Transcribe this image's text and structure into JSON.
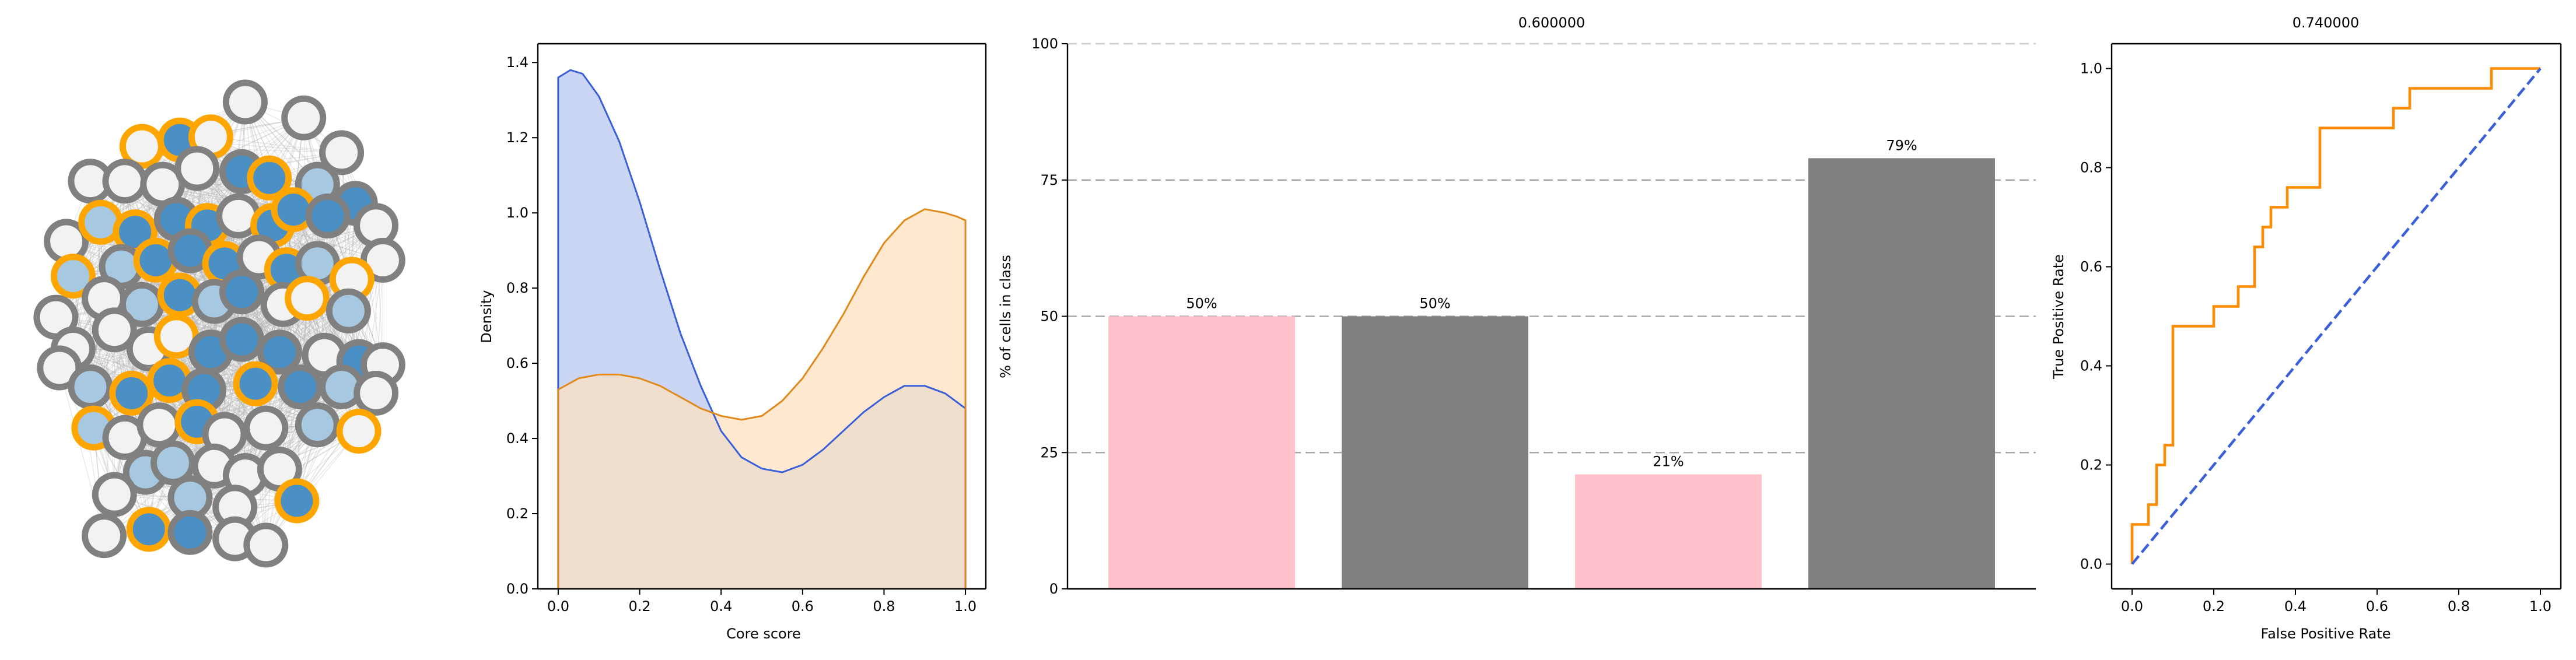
{
  "chart_data": [
    {
      "type": "network",
      "colors": {
        "node_fill_dark": "#4a90c4",
        "node_fill_light": "#a6c8e0",
        "node_fill_empty": "#f2f2f2",
        "ring_core": "#ffa500",
        "ring_periphery": "#808080",
        "edge": "#b3b3b3"
      },
      "nodes": [
        {
          "x": 0.56,
          "y": 0.95,
          "fill": "empty",
          "ring": "periphery"
        },
        {
          "x": 0.73,
          "y": 0.9,
          "fill": "empty",
          "ring": "periphery"
        },
        {
          "x": 0.26,
          "y": 0.81,
          "fill": "empty",
          "ring": "core"
        },
        {
          "x": 0.37,
          "y": 0.83,
          "fill": "dark",
          "ring": "core"
        },
        {
          "x": 0.46,
          "y": 0.84,
          "fill": "empty",
          "ring": "core"
        },
        {
          "x": 0.84,
          "y": 0.79,
          "fill": "empty",
          "ring": "periphery"
        },
        {
          "x": 0.11,
          "y": 0.7,
          "fill": "empty",
          "ring": "periphery"
        },
        {
          "x": 0.21,
          "y": 0.7,
          "fill": "empty",
          "ring": "periphery"
        },
        {
          "x": 0.32,
          "y": 0.69,
          "fill": "empty",
          "ring": "periphery"
        },
        {
          "x": 0.42,
          "y": 0.74,
          "fill": "empty",
          "ring": "periphery"
        },
        {
          "x": 0.55,
          "y": 0.73,
          "fill": "dark",
          "ring": "periphery"
        },
        {
          "x": 0.63,
          "y": 0.71,
          "fill": "dark",
          "ring": "core"
        },
        {
          "x": 0.77,
          "y": 0.69,
          "fill": "light",
          "ring": "periphery"
        },
        {
          "x": 0.88,
          "y": 0.63,
          "fill": "dark",
          "ring": "periphery"
        },
        {
          "x": 0.94,
          "y": 0.56,
          "fill": "empty",
          "ring": "periphery"
        },
        {
          "x": 0.04,
          "y": 0.51,
          "fill": "empty",
          "ring": "periphery"
        },
        {
          "x": 0.14,
          "y": 0.57,
          "fill": "light",
          "ring": "core"
        },
        {
          "x": 0.24,
          "y": 0.54,
          "fill": "dark",
          "ring": "core"
        },
        {
          "x": 0.36,
          "y": 0.58,
          "fill": "dark",
          "ring": "periphery"
        },
        {
          "x": 0.45,
          "y": 0.56,
          "fill": "dark",
          "ring": "core"
        },
        {
          "x": 0.54,
          "y": 0.59,
          "fill": "empty",
          "ring": "periphery"
        },
        {
          "x": 0.64,
          "y": 0.56,
          "fill": "dark",
          "ring": "core"
        },
        {
          "x": 0.7,
          "y": 0.61,
          "fill": "dark",
          "ring": "core"
        },
        {
          "x": 0.8,
          "y": 0.59,
          "fill": "dark",
          "ring": "periphery"
        },
        {
          "x": 0.96,
          "y": 0.45,
          "fill": "empty",
          "ring": "periphery"
        },
        {
          "x": 0.06,
          "y": 0.4,
          "fill": "light",
          "ring": "core"
        },
        {
          "x": 0.2,
          "y": 0.43,
          "fill": "light",
          "ring": "periphery"
        },
        {
          "x": 0.3,
          "y": 0.45,
          "fill": "dark",
          "ring": "core"
        },
        {
          "x": 0.4,
          "y": 0.48,
          "fill": "dark",
          "ring": "periphery"
        },
        {
          "x": 0.5,
          "y": 0.44,
          "fill": "dark",
          "ring": "core"
        },
        {
          "x": 0.6,
          "y": 0.46,
          "fill": "empty",
          "ring": "periphery"
        },
        {
          "x": 0.68,
          "y": 0.42,
          "fill": "dark",
          "ring": "core"
        },
        {
          "x": 0.77,
          "y": 0.44,
          "fill": "light",
          "ring": "periphery"
        },
        {
          "x": 0.87,
          "y": 0.39,
          "fill": "empty",
          "ring": "core"
        },
        {
          "x": 0.01,
          "y": 0.27,
          "fill": "empty",
          "ring": "periphery"
        },
        {
          "x": 0.15,
          "y": 0.33,
          "fill": "empty",
          "ring": "periphery"
        },
        {
          "x": 0.26,
          "y": 0.31,
          "fill": "light",
          "ring": "periphery"
        },
        {
          "x": 0.37,
          "y": 0.34,
          "fill": "dark",
          "ring": "core"
        },
        {
          "x": 0.47,
          "y": 0.32,
          "fill": "light",
          "ring": "periphery"
        },
        {
          "x": 0.55,
          "y": 0.35,
          "fill": "dark",
          "ring": "periphery"
        },
        {
          "x": 0.67,
          "y": 0.31,
          "fill": "empty",
          "ring": "periphery"
        },
        {
          "x": 0.74,
          "y": 0.33,
          "fill": "empty",
          "ring": "core"
        },
        {
          "x": 0.86,
          "y": 0.29,
          "fill": "light",
          "ring": "periphery"
        },
        {
          "x": 0.06,
          "y": 0.17,
          "fill": "empty",
          "ring": "periphery"
        },
        {
          "x": 0.18,
          "y": 0.23,
          "fill": "empty",
          "ring": "periphery"
        },
        {
          "x": 0.28,
          "y": 0.17,
          "fill": "empty",
          "ring": "periphery"
        },
        {
          "x": 0.36,
          "y": 0.21,
          "fill": "empty",
          "ring": "core"
        },
        {
          "x": 0.46,
          "y": 0.16,
          "fill": "dark",
          "ring": "periphery"
        },
        {
          "x": 0.55,
          "y": 0.2,
          "fill": "dark",
          "ring": "periphery"
        },
        {
          "x": 0.66,
          "y": 0.16,
          "fill": "dark",
          "ring": "periphery"
        },
        {
          "x": 0.79,
          "y": 0.15,
          "fill": "empty",
          "ring": "periphery"
        },
        {
          "x": 0.89,
          "y": 0.13,
          "fill": "dark",
          "ring": "periphery"
        },
        {
          "x": 0.96,
          "y": 0.12,
          "fill": "empty",
          "ring": "periphery"
        },
        {
          "x": 0.02,
          "y": 0.11,
          "fill": "empty",
          "ring": "periphery"
        },
        {
          "x": 0.11,
          "y": 0.05,
          "fill": "light",
          "ring": "periphery"
        },
        {
          "x": 0.23,
          "y": 0.03,
          "fill": "dark",
          "ring": "core"
        },
        {
          "x": 0.34,
          "y": 0.07,
          "fill": "dark",
          "ring": "core"
        },
        {
          "x": 0.44,
          "y": 0.04,
          "fill": "dark",
          "ring": "periphery"
        },
        {
          "x": 0.59,
          "y": 0.06,
          "fill": "dark",
          "ring": "core"
        },
        {
          "x": 0.72,
          "y": 0.05,
          "fill": "dark",
          "ring": "periphery"
        },
        {
          "x": 0.84,
          "y": 0.05,
          "fill": "light",
          "ring": "periphery"
        },
        {
          "x": 0.94,
          "y": 0.03,
          "fill": "empty",
          "ring": "periphery"
        },
        {
          "x": 0.12,
          "y": -0.08,
          "fill": "light",
          "ring": "core"
        },
        {
          "x": 0.21,
          "y": -0.11,
          "fill": "empty",
          "ring": "periphery"
        },
        {
          "x": 0.31,
          "y": -0.07,
          "fill": "empty",
          "ring": "periphery"
        },
        {
          "x": 0.42,
          "y": -0.06,
          "fill": "dark",
          "ring": "core"
        },
        {
          "x": 0.5,
          "y": -0.1,
          "fill": "empty",
          "ring": "periphery"
        },
        {
          "x": 0.62,
          "y": -0.08,
          "fill": "empty",
          "ring": "periphery"
        },
        {
          "x": 0.77,
          "y": -0.07,
          "fill": "light",
          "ring": "periphery"
        },
        {
          "x": 0.89,
          "y": -0.09,
          "fill": "empty",
          "ring": "core"
        },
        {
          "x": 0.27,
          "y": -0.22,
          "fill": "light",
          "ring": "periphery"
        },
        {
          "x": 0.35,
          "y": -0.19,
          "fill": "light",
          "ring": "periphery"
        },
        {
          "x": 0.47,
          "y": -0.2,
          "fill": "empty",
          "ring": "periphery"
        },
        {
          "x": 0.56,
          "y": -0.23,
          "fill": "empty",
          "ring": "periphery"
        },
        {
          "x": 0.66,
          "y": -0.21,
          "fill": "empty",
          "ring": "periphery"
        },
        {
          "x": 0.4,
          "y": -0.3,
          "fill": "light",
          "ring": "periphery"
        },
        {
          "x": 0.18,
          "y": -0.29,
          "fill": "empty",
          "ring": "periphery"
        },
        {
          "x": 0.53,
          "y": -0.33,
          "fill": "empty",
          "ring": "periphery"
        },
        {
          "x": 0.71,
          "y": -0.31,
          "fill": "dark",
          "ring": "core"
        },
        {
          "x": 0.15,
          "y": -0.42,
          "fill": "empty",
          "ring": "periphery"
        },
        {
          "x": 0.28,
          "y": -0.4,
          "fill": "dark",
          "ring": "core"
        },
        {
          "x": 0.4,
          "y": -0.41,
          "fill": "dark",
          "ring": "periphery"
        },
        {
          "x": 0.53,
          "y": -0.43,
          "fill": "empty",
          "ring": "periphery"
        },
        {
          "x": 0.62,
          "y": -0.45,
          "fill": "empty",
          "ring": "periphery"
        }
      ]
    },
    {
      "type": "area",
      "xlabel": "Core score",
      "ylabel": "Density",
      "xlim": [
        -0.05,
        1.05
      ],
      "ylim": [
        0,
        1.45
      ],
      "xticks": [
        "0.0",
        "0.2",
        "0.4",
        "0.6",
        "0.8",
        "1.0"
      ],
      "yticks": [
        "0.0",
        "0.2",
        "0.4",
        "0.6",
        "0.8",
        "1.0",
        "1.2",
        "1.4"
      ],
      "xtick_values": [
        0,
        0.2,
        0.4,
        0.6,
        0.8,
        1.0
      ],
      "ytick_values": [
        0,
        0.2,
        0.4,
        0.6,
        0.8,
        1.0,
        1.2,
        1.4
      ],
      "series": [
        {
          "color": "#3a5fd9",
          "fill": "#cbd5f4",
          "x": [
            0.0,
            0.03,
            0.06,
            0.1,
            0.15,
            0.2,
            0.25,
            0.3,
            0.35,
            0.4,
            0.45,
            0.5,
            0.55,
            0.6,
            0.65,
            0.7,
            0.75,
            0.8,
            0.85,
            0.9,
            0.95,
            1.0
          ],
          "y": [
            1.36,
            1.38,
            1.37,
            1.31,
            1.19,
            1.03,
            0.85,
            0.68,
            0.54,
            0.42,
            0.35,
            0.32,
            0.31,
            0.33,
            0.37,
            0.42,
            0.47,
            0.51,
            0.54,
            0.54,
            0.52,
            0.48
          ]
        },
        {
          "color": "#e08a1e",
          "fill": "#fde1c0",
          "x": [
            0.0,
            0.05,
            0.1,
            0.15,
            0.2,
            0.25,
            0.3,
            0.35,
            0.4,
            0.45,
            0.5,
            0.55,
            0.6,
            0.65,
            0.7,
            0.75,
            0.8,
            0.85,
            0.9,
            0.95,
            0.98,
            1.0
          ],
          "y": [
            0.53,
            0.56,
            0.57,
            0.57,
            0.56,
            0.54,
            0.51,
            0.48,
            0.46,
            0.45,
            0.46,
            0.5,
            0.56,
            0.64,
            0.73,
            0.83,
            0.92,
            0.98,
            1.01,
            1.0,
            0.99,
            0.98
          ]
        }
      ]
    },
    {
      "type": "bar",
      "title": "0.600000",
      "ylabel": "% of cells in class",
      "ylim": [
        0,
        100
      ],
      "yticks": [
        "0",
        "25",
        "50",
        "75",
        "100"
      ],
      "ytick_values": [
        0,
        25,
        50,
        75,
        100
      ],
      "grid": true,
      "values": [
        50,
        50,
        21,
        79
      ],
      "labels": [
        "50%",
        "50%",
        "21%",
        "79%"
      ],
      "colors": [
        "#ffc0cb",
        "#808080",
        "#ffc0cb",
        "#808080"
      ]
    },
    {
      "type": "line",
      "title": "0.740000",
      "xlabel": "False Positive Rate",
      "ylabel": "True Positive Rate",
      "xlim": [
        -0.05,
        1.05
      ],
      "ylim": [
        -0.05,
        1.05
      ],
      "xticks": [
        "0.0",
        "0.2",
        "0.4",
        "0.6",
        "0.8",
        "1.0"
      ],
      "yticks": [
        "0.0",
        "0.2",
        "0.4",
        "0.6",
        "0.8",
        "1.0"
      ],
      "xtick_values": [
        0,
        0.2,
        0.4,
        0.6,
        0.8,
        1.0
      ],
      "ytick_values": [
        0,
        0.2,
        0.4,
        0.6,
        0.8,
        1.0
      ],
      "series": [
        {
          "color": "#ff8c00",
          "x": [
            0,
            0,
            0.04,
            0.04,
            0.06,
            0.06,
            0.08,
            0.08,
            0.1,
            0.1,
            0.2,
            0.2,
            0.26,
            0.26,
            0.3,
            0.3,
            0.32,
            0.32,
            0.34,
            0.34,
            0.38,
            0.38,
            0.46,
            0.46,
            0.64,
            0.64,
            0.68,
            0.68,
            0.88,
            0.88,
            1.0
          ],
          "y": [
            0,
            0.08,
            0.08,
            0.12,
            0.12,
            0.2,
            0.2,
            0.24,
            0.24,
            0.48,
            0.48,
            0.52,
            0.52,
            0.56,
            0.56,
            0.64,
            0.64,
            0.68,
            0.68,
            0.72,
            0.72,
            0.76,
            0.76,
            0.88,
            0.88,
            0.92,
            0.92,
            0.96,
            0.96,
            1.0,
            1.0
          ]
        },
        {
          "color": "#3a5fd9",
          "dashed": true,
          "x": [
            0,
            1
          ],
          "y": [
            0,
            1
          ]
        }
      ]
    }
  ]
}
